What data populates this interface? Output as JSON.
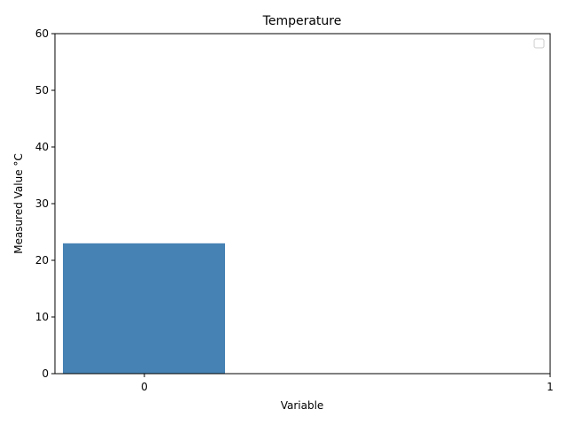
{
  "chart_data": {
    "type": "bar",
    "title": "Temperature",
    "xlabel": "Variable",
    "ylabel": "Measured Value °C",
    "categories": [
      "0"
    ],
    "values": [
      23
    ],
    "x_ticks": [
      "0",
      "1"
    ],
    "y_ticks": [
      0,
      10,
      20,
      30,
      40,
      50,
      60
    ],
    "ylim": [
      0,
      60
    ],
    "bar_color": "#4682b4",
    "legend": {
      "placement": "top-right",
      "entries": []
    },
    "grid": false
  }
}
